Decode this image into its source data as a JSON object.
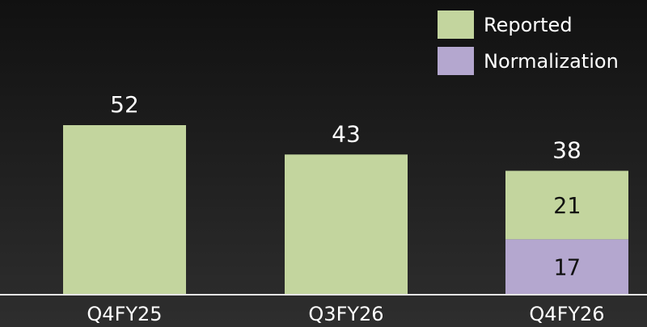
{
  "chart_data": {
    "type": "bar",
    "stacked": true,
    "categories": [
      "Q4FY25",
      "Q3FY26",
      "Q4FY26"
    ],
    "totals": [
      "52",
      "43",
      "38"
    ],
    "series": [
      {
        "name": "Normalization",
        "values": [
          0,
          0,
          17
        ],
        "color": "#b4a7cf"
      },
      {
        "name": "Reported",
        "values": [
          52,
          43,
          21
        ],
        "color": "#c3d59e"
      }
    ],
    "segment_labels": {
      "Q4FY26": {
        "Reported": "21",
        "Normalization": "17"
      }
    },
    "legend": {
      "position": "top-right",
      "items": [
        {
          "label": "Reported",
          "color": "#c3d59e"
        },
        {
          "label": "Normalization",
          "color": "#b4a7cf"
        }
      ]
    },
    "title": "",
    "xlabel": "",
    "ylabel": "",
    "ylim": [
      0,
      52
    ],
    "grid": false,
    "axis_color": "#e6e6e6"
  }
}
